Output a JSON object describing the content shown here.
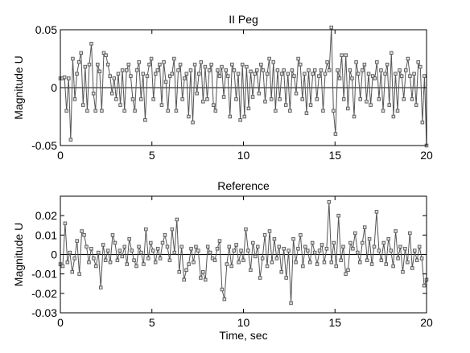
{
  "chart_data": [
    {
      "type": "line",
      "title": "II Peg",
      "xlabel": "",
      "ylabel": "Magnitude  U",
      "xlim": [
        0,
        20
      ],
      "ylim": [
        -0.05,
        0.05
      ],
      "xticks": [
        "0",
        "5",
        "10",
        "15",
        "20"
      ],
      "yticks": [
        "0.05",
        "0",
        "-0.05"
      ],
      "grid": false,
      "zero_line": true,
      "series": [
        {
          "values": [
            0.008,
            0.008,
            0.009,
            -0.02,
            0.008,
            -0.045,
            0.025,
            -0.01,
            0.012,
            0.022,
            0.03,
            -0.015,
            0.018,
            -0.02,
            0.02,
            0.038,
            -0.005,
            -0.02,
            0.02,
            0.014,
            -0.02,
            0.03,
            0.028,
            0.02,
            0.01,
            -0.005,
            0.008,
            -0.01,
            0.012,
            -0.015,
            0.015,
            -0.02,
            0.015,
            0.02,
            0.01,
            -0.01,
            -0.02,
            0.015,
            0.022,
            -0.01,
            0.012,
            -0.028,
            0.01,
            0.02,
            0.025,
            -0.01,
            0.012,
            0.015,
            0.02,
            -0.015,
            0.022,
            0.005,
            -0.02,
            0.01,
            0.012,
            0.025,
            -0.02,
            0.015,
            0.02,
            -0.01,
            0.008,
            0.012,
            -0.025,
            0.015,
            -0.03,
            0.02,
            -0.005,
            0.012,
            0.022,
            -0.012,
            0.018,
            -0.01,
            0.015,
            0.02,
            -0.015,
            -0.02,
            0.015,
            0.01,
            0.018,
            -0.008,
            0.015,
            0.01,
            -0.025,
            0.02,
            0.015,
            -0.01,
            0.012,
            -0.028,
            0.02,
            -0.025,
            0.018,
            -0.018,
            0.014,
            -0.008,
            0.012,
            0.015,
            -0.005,
            0.02,
            0.015,
            -0.012,
            0.012,
            0.025,
            -0.01,
            0.022,
            -0.02,
            0.015,
            -0.01,
            0.012,
            0.015,
            -0.015,
            0.012,
            -0.02,
            0.015,
            0.01,
            -0.005,
            0.025,
            0.02,
            -0.01,
            0.012,
            -0.022,
            0.015,
            -0.015,
            0.012,
            0.015,
            -0.01,
            0.01,
            0.015,
            -0.02,
            0.012,
            0.022,
            0.015,
            0.052,
            -0.02,
            -0.04,
            0.015,
            0.008,
            0.028,
            -0.01,
            0.028,
            -0.018,
            0.015,
            0.008,
            -0.025,
            0.022,
            0.012,
            -0.01,
            0.015,
            0.02,
            -0.012,
            0.012,
            -0.015,
            0.01,
            0.008,
            0.022,
            -0.01,
            0.015,
            -0.02,
            0.012,
            0.02,
            -0.015,
            0.03,
            -0.025,
            0.012,
            -0.02,
            0.015,
            0.01,
            -0.01,
            0.015,
            0.025,
            0.01,
            -0.01,
            0.012,
            -0.015,
            0.022,
            0.018,
            -0.03,
            0.01,
            -0.05
          ]
        }
      ]
    },
    {
      "type": "line",
      "title": "Reference",
      "xlabel": "Time, sec",
      "ylabel": "Magnitude  U",
      "xlim": [
        0,
        20
      ],
      "ylim": [
        -0.03,
        0.03
      ],
      "xticks": [
        "0",
        "5",
        "10",
        "15",
        "20"
      ],
      "yticks": [
        "0.02",
        "0.01",
        "0",
        "-0.01",
        "-0.02",
        "-0.03"
      ],
      "grid": false,
      "zero_line": true,
      "series": [
        {
          "values": [
            -0.005,
            -0.006,
            0.016,
            -0.004,
            0.001,
            -0.009,
            -0.002,
            0.007,
            -0.01,
            0.012,
            0.01,
            0.004,
            -0.004,
            0.003,
            -0.002,
            -0.006,
            0.001,
            -0.017,
            0.005,
            -0.003,
            0.002,
            -0.004,
            0.01,
            0.006,
            -0.003,
            0.002,
            -0.001,
            0.004,
            -0.005,
            0.008,
            0.002,
            -0.003,
            -0.006,
            0.004,
            0.001,
            -0.005,
            0.013,
            -0.002,
            0.006,
            0.002,
            -0.004,
            0.003,
            -0.002,
            0.006,
            0.01,
            0.004,
            -0.003,
            0.013,
            0.001,
            0.018,
            -0.009,
            0.004,
            -0.013,
            -0.008,
            -0.005,
            0.003,
            -0.004,
            0.004,
            0.002,
            -0.012,
            -0.009,
            -0.013,
            0.004,
            0.001,
            -0.002,
            -0.003,
            0.003,
            0.007,
            -0.018,
            -0.023,
            -0.005,
            0.004,
            -0.006,
            0.002,
            0.005,
            -0.004,
            0.002,
            -0.003,
            0.013,
            0.002,
            -0.008,
            0.006,
            -0.001,
            0.004,
            -0.012,
            -0.002,
            0.01,
            -0.006,
            0.012,
            -0.004,
            0.008,
            -0.002,
            0.004,
            -0.009,
            0.003,
            -0.012,
            0.002,
            -0.025,
            0.008,
            -0.004,
            0.003,
            0.01,
            -0.006,
            0.004,
            0.002,
            -0.004,
            0.006,
            0.001,
            -0.005,
            0.002,
            0.005,
            -0.004,
            0.003,
            0.027,
            -0.004,
            0.006,
            -0.006,
            0.02,
            -0.003,
            0.004,
            -0.01,
            -0.008,
            0.006,
            0.003,
            0.011,
            0.001,
            -0.004,
            0.006,
            0.014,
            -0.003,
            0.008,
            -0.005,
            0.004,
            0.022,
            0.002,
            -0.003,
            0.006,
            -0.005,
            0.008,
            0.002,
            -0.006,
            0.012,
            -0.002,
            0.004,
            -0.009,
            0.003,
            -0.004,
            0.011,
            -0.007,
            0.002,
            -0.003,
            0.004,
            -0.002,
            -0.016,
            -0.013
          ]
        }
      ]
    }
  ]
}
